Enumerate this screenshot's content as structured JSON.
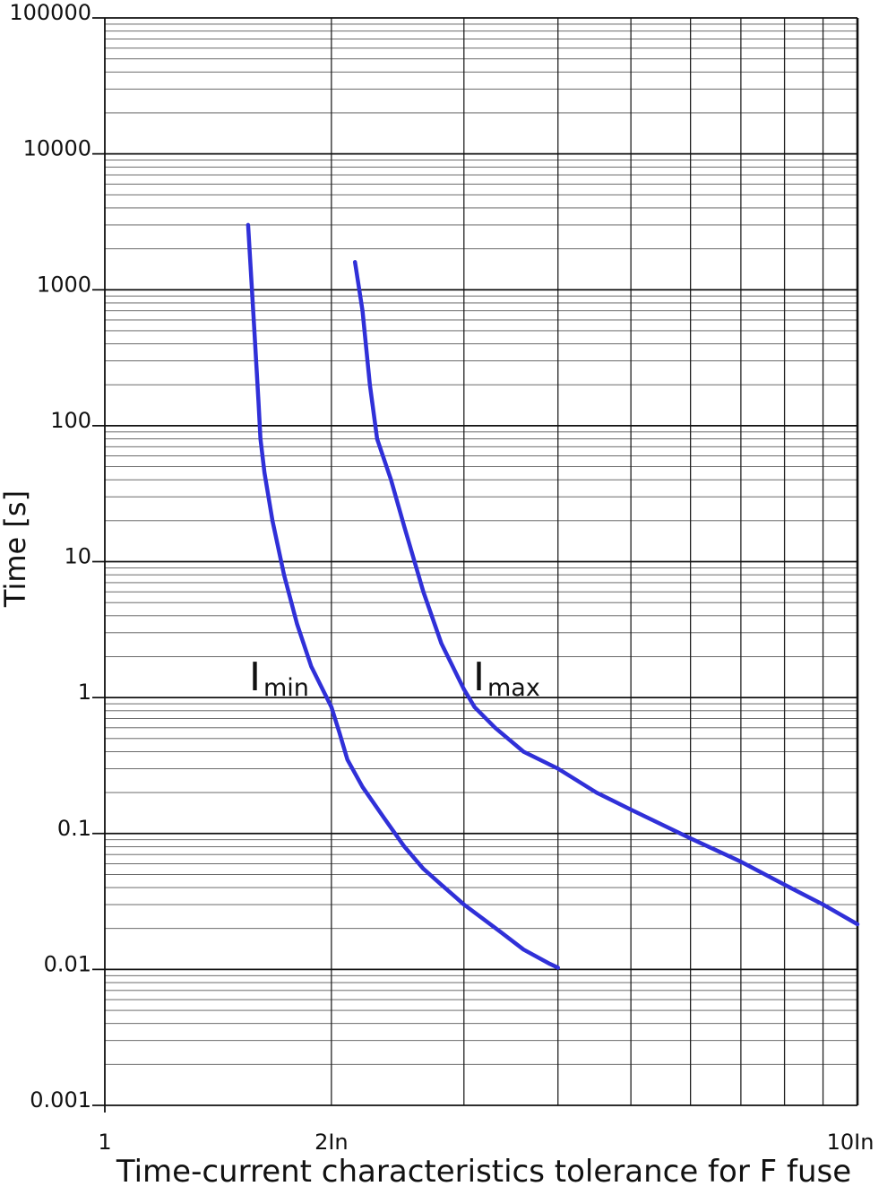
{
  "chart_data": {
    "type": "line",
    "title": "",
    "xlabel": "Time-current characteristics tolerance for F fuse",
    "ylabel": "Time [s]",
    "x_scale": "log",
    "y_scale": "log",
    "xlim": [
      1,
      10
    ],
    "ylim": [
      0.001,
      100000
    ],
    "grid": true,
    "x_ticks": [
      {
        "value": 1,
        "label": "1"
      },
      {
        "value": 2,
        "label": "2In"
      },
      {
        "value": 10,
        "label": "10In"
      }
    ],
    "y_ticks": [
      {
        "value": 0.001,
        "label": "0.001"
      },
      {
        "value": 0.01,
        "label": "0.01"
      },
      {
        "value": 0.1,
        "label": "0.1"
      },
      {
        "value": 1,
        "label": "1"
      },
      {
        "value": 10,
        "label": "10"
      },
      {
        "value": 100,
        "label": "100"
      },
      {
        "value": 1000,
        "label": "1000"
      },
      {
        "value": 10000,
        "label": "10000"
      },
      {
        "value": 100000,
        "label": "100000"
      }
    ],
    "series": [
      {
        "name": "Imin",
        "label_main": "I",
        "label_sub": "min",
        "color": "#3030d8",
        "x": [
          1.55,
          1.58,
          1.6,
          1.61,
          1.63,
          1.67,
          1.73,
          1.8,
          1.88,
          2.0,
          2.05,
          2.1,
          2.2,
          2.35,
          2.5,
          2.65,
          2.8,
          3.0,
          3.35,
          3.6,
          3.9,
          4.0
        ],
        "y": [
          3000,
          500,
          150,
          80,
          45,
          20,
          8,
          3.5,
          1.7,
          0.85,
          0.55,
          0.35,
          0.22,
          0.13,
          0.08,
          0.055,
          0.042,
          0.03,
          0.019,
          0.014,
          0.011,
          0.0103
        ]
      },
      {
        "name": "Imax",
        "label_main": "I",
        "label_sub": "max",
        "color": "#3030d8",
        "x": [
          2.15,
          2.2,
          2.25,
          2.3,
          2.4,
          2.5,
          2.65,
          2.8,
          3.0,
          3.1,
          3.3,
          3.6,
          4.0,
          4.5,
          5.0,
          6.0,
          7.0,
          8.0,
          9.0,
          10.0
        ],
        "y": [
          1600,
          700,
          200,
          80,
          40,
          18,
          6,
          2.5,
          1.15,
          0.85,
          0.6,
          0.4,
          0.3,
          0.2,
          0.15,
          0.092,
          0.062,
          0.042,
          0.03,
          0.0215
        ]
      }
    ]
  }
}
